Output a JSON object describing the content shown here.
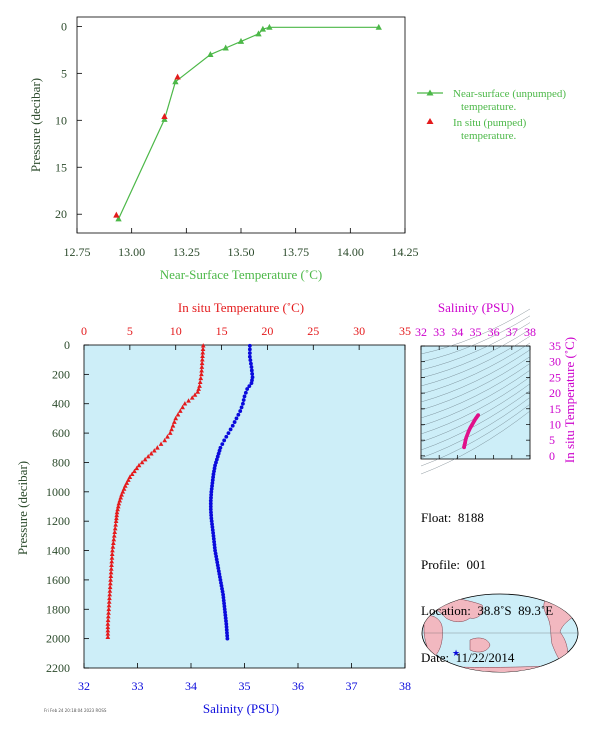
{
  "colors": {
    "green": "#4cb848",
    "red": "#e41a1c",
    "blue": "#0a0adc",
    "magenta": "#cc00cc",
    "panel_bg": "#cdeef8",
    "axis_text": "#2b4a2b"
  },
  "chart_data": [
    {
      "type": "line",
      "xlabel": "Near-Surface Temperature (˚C)",
      "ylabel": "Pressure (decibar)",
      "xlim": [
        12.75,
        14.25
      ],
      "ylim": [
        22,
        -1
      ],
      "x_ticks": [
        "12.75",
        "13.00",
        "13.25",
        "13.50",
        "13.75",
        "14.00",
        "14.25"
      ],
      "y_ticks": [
        "0",
        "5",
        "10",
        "15",
        "20"
      ],
      "legend_position": "right",
      "series": [
        {
          "name": "Near-surface (unpumped) temperature.",
          "marker": "triangle",
          "color": "#4cb848",
          "points": [
            [
              14.13,
              0.1
            ],
            [
              13.63,
              0.1
            ],
            [
              13.6,
              0.3
            ],
            [
              13.58,
              0.8
            ],
            [
              13.5,
              1.6
            ],
            [
              13.43,
              2.3
            ],
            [
              13.36,
              3.0
            ],
            [
              13.2,
              5.9
            ],
            [
              13.15,
              9.9
            ],
            [
              12.94,
              20.5
            ]
          ]
        },
        {
          "name": "In situ (pumped) temperature.",
          "marker": "triangle",
          "color": "#e41a1c",
          "points": [
            [
              13.21,
              5.4
            ],
            [
              13.15,
              9.6
            ],
            [
              12.93,
              20.1
            ]
          ]
        }
      ]
    },
    {
      "type": "scatter",
      "ylabel": "Pressure (decibar)",
      "x_top_label": "In situ Temperature (˚C)",
      "x_bottom_label": "Salinity (PSU)",
      "temperature_xlim": [
        0,
        35
      ],
      "salinity_xlim": [
        32,
        38
      ],
      "ylim": [
        2200,
        0
      ],
      "temperature_ticks": [
        "0",
        "5",
        "10",
        "15",
        "20",
        "25",
        "30",
        "35"
      ],
      "salinity_ticks": [
        "32",
        "33",
        "34",
        "35",
        "36",
        "37",
        "38"
      ],
      "y_ticks": [
        "0",
        "200",
        "400",
        "600",
        "800",
        "1000",
        "1200",
        "1400",
        "1600",
        "1800",
        "2000",
        "2200"
      ],
      "series": [
        {
          "name": "In situ Temperature (˚C)",
          "marker": "triangle",
          "color": "#e41a1c",
          "points": [
            [
              13.0,
              5
            ],
            [
              12.9,
              100
            ],
            [
              12.8,
              200
            ],
            [
              12.6,
              280
            ],
            [
              12.4,
              320
            ],
            [
              11.8,
              360
            ],
            [
              11.0,
              400
            ],
            [
              10.5,
              450
            ],
            [
              10.0,
              500
            ],
            [
              9.4,
              600
            ],
            [
              8.8,
              650
            ],
            [
              8.0,
              700
            ],
            [
              7.0,
              760
            ],
            [
              6.0,
              820
            ],
            [
              5.5,
              860
            ],
            [
              5.0,
              900
            ],
            [
              4.5,
              960
            ],
            [
              4.1,
              1020
            ],
            [
              3.8,
              1080
            ],
            [
              3.6,
              1140
            ],
            [
              3.5,
              1200
            ],
            [
              3.3,
              1300
            ],
            [
              3.1,
              1400
            ],
            [
              3.0,
              1500
            ],
            [
              2.9,
              1600
            ],
            [
              2.8,
              1700
            ],
            [
              2.7,
              1800
            ],
            [
              2.6,
              1900
            ],
            [
              2.6,
              1990
            ]
          ]
        },
        {
          "name": "Salinity (PSU)",
          "marker": "dot",
          "color": "#0a0adc",
          "points": [
            [
              35.1,
              5
            ],
            [
              35.1,
              80
            ],
            [
              35.13,
              150
            ],
            [
              35.15,
              220
            ],
            [
              35.13,
              260
            ],
            [
              35.05,
              300
            ],
            [
              35.0,
              350
            ],
            [
              34.97,
              400
            ],
            [
              34.92,
              450
            ],
            [
              34.85,
              500
            ],
            [
              34.78,
              550
            ],
            [
              34.7,
              600
            ],
            [
              34.62,
              650
            ],
            [
              34.55,
              700
            ],
            [
              34.5,
              760
            ],
            [
              34.45,
              820
            ],
            [
              34.42,
              880
            ],
            [
              34.4,
              940
            ],
            [
              34.38,
              1000
            ],
            [
              34.37,
              1060
            ],
            [
              34.37,
              1120
            ],
            [
              34.38,
              1180
            ],
            [
              34.4,
              1240
            ],
            [
              34.42,
              1300
            ],
            [
              34.45,
              1400
            ],
            [
              34.5,
              1500
            ],
            [
              34.55,
              1600
            ],
            [
              34.6,
              1700
            ],
            [
              34.63,
              1800
            ],
            [
              34.66,
              1900
            ],
            [
              34.68,
              2000
            ]
          ]
        }
      ]
    },
    {
      "type": "scatter",
      "x_top_label": "Salinity (PSU)",
      "right_ylabel": "In situ Temperature (˚C)",
      "xlim": [
        32,
        38
      ],
      "ylim": [
        -1,
        35
      ],
      "x_ticks": [
        "32",
        "33",
        "34",
        "35",
        "36",
        "37",
        "38"
      ],
      "y_ticks": [
        "0",
        "5",
        "10",
        "15",
        "20",
        "25",
        "30",
        "35"
      ],
      "grid": true,
      "series": [
        {
          "name": "T-S",
          "marker": "dot",
          "color": "#e0108a",
          "points": [
            [
              34.37,
              2.7
            ],
            [
              34.38,
              3.1
            ],
            [
              34.4,
              3.5
            ],
            [
              34.42,
              4.0
            ],
            [
              34.45,
              5.0
            ],
            [
              34.5,
              6.0
            ],
            [
              34.6,
              7.5
            ],
            [
              34.7,
              8.8
            ],
            [
              34.8,
              9.8
            ],
            [
              34.9,
              10.8
            ],
            [
              35.0,
              11.8
            ],
            [
              35.1,
              12.6
            ],
            [
              35.15,
              13.0
            ]
          ]
        }
      ]
    }
  ],
  "info": {
    "float": "Float:  8188",
    "profile": "Profile:  001",
    "location": "Location:  38.8˚S  89.3˚E",
    "date": "Date:  11/22/2014"
  },
  "stamp": "Fri Feb 24 20:18:04 2023 ROSS"
}
